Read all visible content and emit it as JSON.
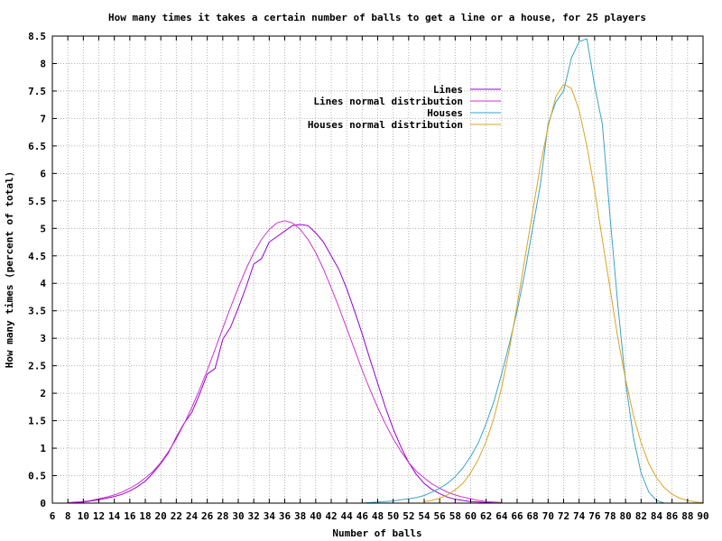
{
  "chart_data": {
    "type": "line",
    "title": "How many times it takes a certain number of balls to get a line or a house, for 25 players",
    "xlabel": "Number of balls",
    "ylabel": "How many times (percent of total)",
    "xlim": [
      6,
      90
    ],
    "ylim": [
      0,
      8.5
    ],
    "x_ticks": [
      6,
      8,
      10,
      12,
      14,
      16,
      18,
      20,
      22,
      24,
      26,
      28,
      30,
      32,
      34,
      36,
      38,
      40,
      42,
      44,
      46,
      48,
      50,
      52,
      54,
      56,
      58,
      60,
      62,
      64,
      66,
      68,
      70,
      72,
      74,
      76,
      78,
      80,
      82,
      84,
      86,
      88,
      90
    ],
    "y_ticks": [
      0,
      0.5,
      1,
      1.5,
      2,
      2.5,
      3,
      3.5,
      4,
      4.5,
      5,
      5.5,
      6,
      6.5,
      7,
      7.5,
      8,
      8.5
    ],
    "grid": true,
    "legend_position": "top-center",
    "colors": {
      "title": "#8b0000",
      "grid": "#a0a0a0",
      "axis": "#000000"
    },
    "series": [
      {
        "name": "Lines",
        "color": "#9400d3",
        "x": [
          8,
          9,
          10,
          11,
          12,
          13,
          14,
          15,
          16,
          17,
          18,
          19,
          20,
          21,
          22,
          23,
          24,
          25,
          26,
          27,
          28,
          29,
          30,
          31,
          32,
          33,
          34,
          35,
          36,
          37,
          38,
          39,
          40,
          41,
          42,
          43,
          44,
          45,
          46,
          47,
          48,
          49,
          50,
          51,
          52,
          53,
          54,
          55,
          56,
          57,
          58,
          59,
          60,
          61,
          62,
          63,
          64
        ],
        "y": [
          0,
          0.01,
          0.02,
          0.04,
          0.06,
          0.09,
          0.12,
          0.16,
          0.22,
          0.3,
          0.4,
          0.55,
          0.72,
          0.92,
          1.2,
          1.45,
          1.65,
          1.98,
          2.35,
          2.45,
          2.98,
          3.2,
          3.55,
          3.93,
          4.35,
          4.45,
          4.75,
          4.85,
          4.95,
          5.05,
          5.07,
          5.05,
          4.92,
          4.75,
          4.5,
          4.25,
          3.9,
          3.5,
          3.08,
          2.62,
          2.18,
          1.74,
          1.35,
          1.02,
          0.74,
          0.52,
          0.36,
          0.25,
          0.17,
          0.11,
          0.07,
          0.05,
          0.03,
          0.02,
          0.01,
          0.005,
          0
        ]
      },
      {
        "name": "Lines normal distribution",
        "color": "#cc33cc",
        "x": [
          8,
          9,
          10,
          11,
          12,
          13,
          14,
          15,
          16,
          17,
          18,
          19,
          20,
          21,
          22,
          23,
          24,
          25,
          26,
          27,
          28,
          29,
          30,
          31,
          32,
          33,
          34,
          35,
          36,
          37,
          38,
          39,
          40,
          41,
          42,
          43,
          44,
          45,
          46,
          47,
          48,
          49,
          50,
          51,
          52,
          53,
          54,
          55,
          56,
          57,
          58,
          59,
          60,
          61,
          62,
          63,
          64
        ],
        "y": [
          0.01,
          0.02,
          0.03,
          0.05,
          0.08,
          0.11,
          0.15,
          0.2,
          0.27,
          0.35,
          0.46,
          0.58,
          0.74,
          0.94,
          1.17,
          1.44,
          1.74,
          2.07,
          2.42,
          2.8,
          3.18,
          3.56,
          3.92,
          4.26,
          4.56,
          4.8,
          4.98,
          5.1,
          5.14,
          5.1,
          4.98,
          4.8,
          4.56,
          4.26,
          3.92,
          3.56,
          3.18,
          2.8,
          2.42,
          2.07,
          1.74,
          1.44,
          1.17,
          0.94,
          0.74,
          0.58,
          0.46,
          0.35,
          0.27,
          0.2,
          0.15,
          0.11,
          0.08,
          0.05,
          0.03,
          0.02,
          0.01
        ]
      },
      {
        "name": "Houses",
        "color": "#3aa3c9",
        "x": [
          46,
          47,
          48,
          49,
          50,
          51,
          52,
          53,
          54,
          55,
          56,
          57,
          58,
          59,
          60,
          61,
          62,
          63,
          64,
          65,
          66,
          67,
          68,
          69,
          70,
          71,
          72,
          73,
          74,
          75,
          76,
          77,
          78,
          79,
          80,
          81,
          82,
          83,
          84,
          85
        ],
        "y": [
          0,
          0.01,
          0.02,
          0.03,
          0.04,
          0.06,
          0.08,
          0.1,
          0.14,
          0.2,
          0.27,
          0.36,
          0.48,
          0.64,
          0.85,
          1.1,
          1.45,
          1.85,
          2.35,
          2.9,
          3.5,
          4.2,
          5.0,
          5.8,
          6.9,
          7.3,
          7.5,
          8.1,
          8.4,
          8.45,
          7.6,
          6.9,
          5.2,
          3.6,
          2.2,
          1.2,
          0.55,
          0.2,
          0.05,
          0
        ]
      },
      {
        "name": "Houses normal distribution",
        "color": "#daa520",
        "x": [
          54,
          55,
          56,
          57,
          58,
          59,
          60,
          61,
          62,
          63,
          64,
          65,
          66,
          67,
          68,
          69,
          70,
          71,
          72,
          73,
          74,
          75,
          76,
          77,
          78,
          79,
          80,
          81,
          82,
          83,
          84,
          85,
          86,
          87,
          88,
          89,
          90
        ],
        "y": [
          0.03,
          0.05,
          0.09,
          0.15,
          0.24,
          0.36,
          0.55,
          0.8,
          1.12,
          1.55,
          2.1,
          2.8,
          3.6,
          4.45,
          5.3,
          6.15,
          6.85,
          7.4,
          7.62,
          7.55,
          7.15,
          6.5,
          5.7,
          4.8,
          3.9,
          3.0,
          2.25,
          1.6,
          1.1,
          0.72,
          0.46,
          0.28,
          0.16,
          0.09,
          0.05,
          0.02,
          0.01
        ]
      }
    ]
  }
}
